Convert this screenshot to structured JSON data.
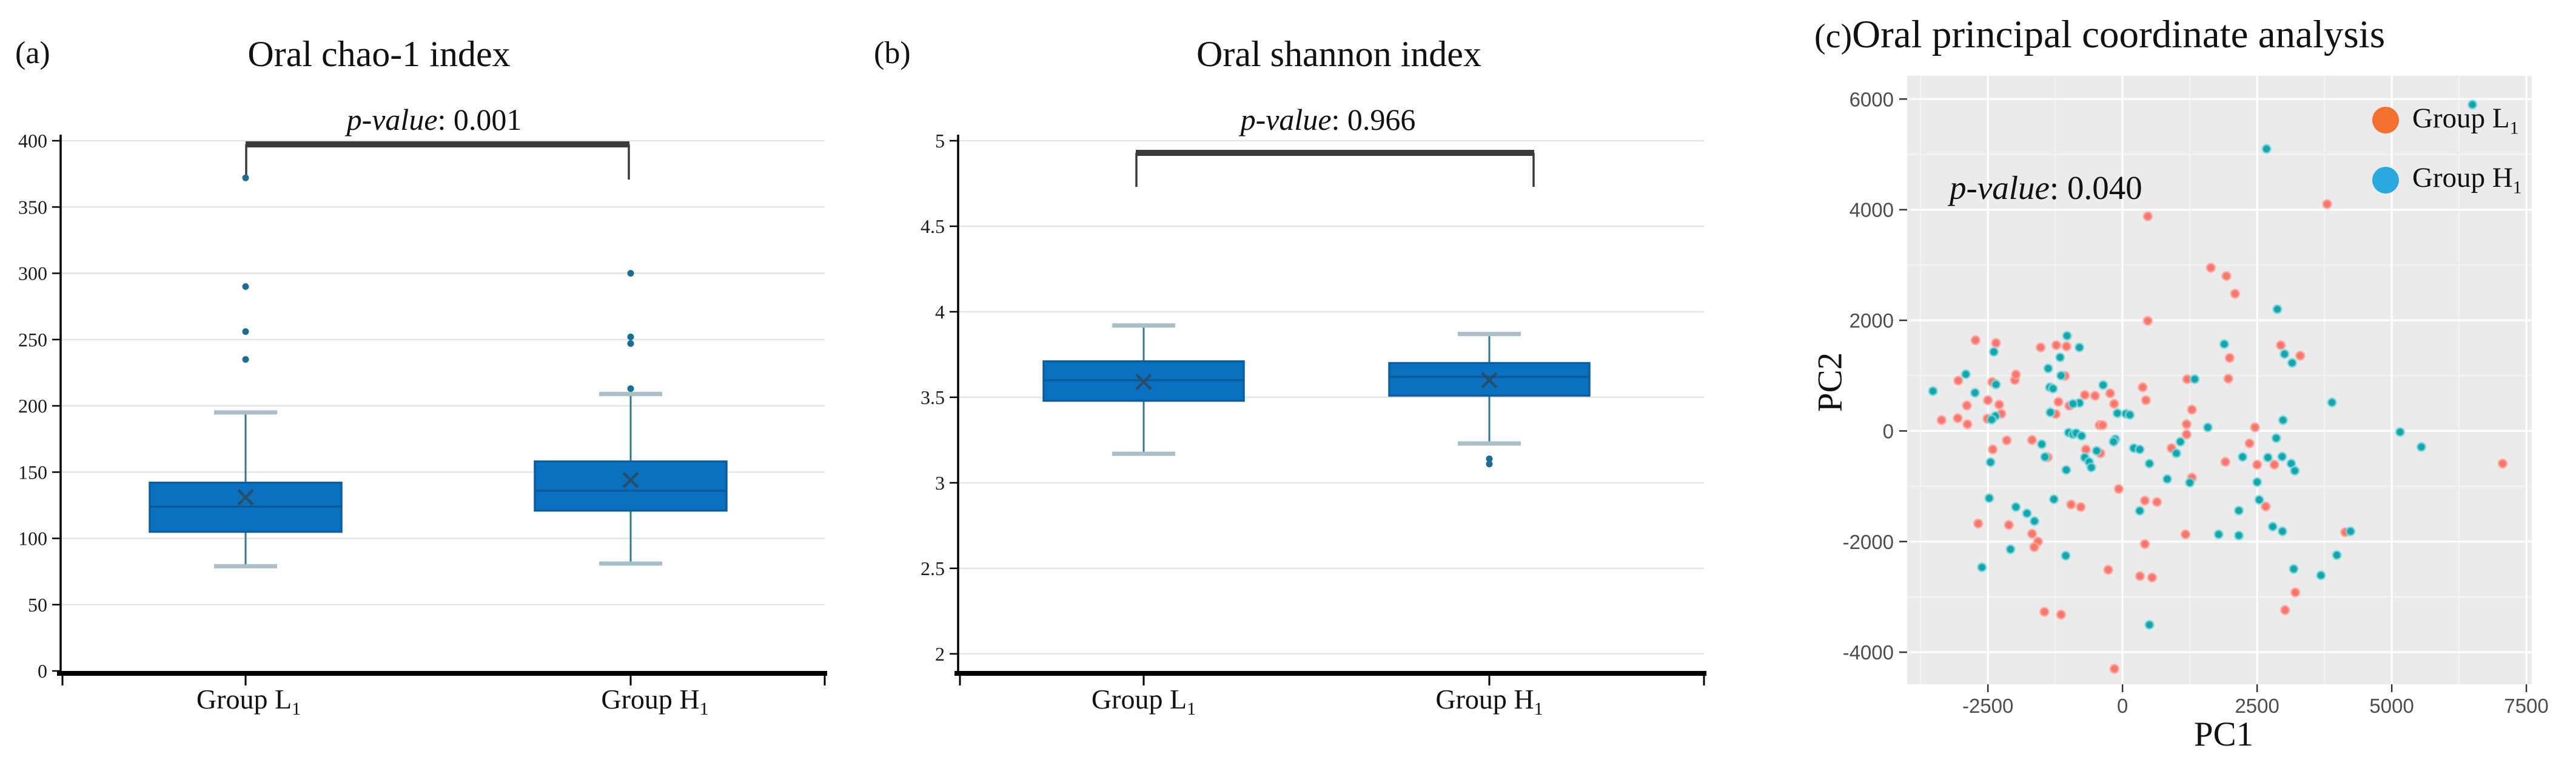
{
  "panels": {
    "a": {
      "letter": "(a)",
      "title": "Oral chao-1 index",
      "p_label": "p-value",
      "p_rest": ": 0.001"
    },
    "b": {
      "letter": "(b)",
      "title": "Oral shannon index",
      "p_label": "p-value",
      "p_rest": ": 0.966"
    },
    "c": {
      "letter": "(c)",
      "title": "Oral principal coordinate analysis",
      "p_label": "p-value",
      "p_rest": ": 0.040",
      "xlabel": "PC1",
      "ylabel": "PC2",
      "legend": [
        {
          "base": "Group L",
          "sub": "1",
          "color": "#f3702e"
        },
        {
          "base": "Group H",
          "sub": "1",
          "color": "#29a9e0"
        }
      ]
    }
  },
  "style": {
    "box_fill": "#0a71c1",
    "box_border": "#0b5fa0",
    "median": "#0a5a96",
    "mean": "#26506a",
    "whisker": "#35788c",
    "cap": "#a9bfca",
    "outlier": "#1b6d94",
    "grid_ab": "#e4e4e4",
    "axis": "#000000",
    "bracket": "#3a3a3a",
    "panel_bg": "#ebebeb",
    "grid_major": "#ffffff",
    "grid_minor": "#f4f4f4",
    "tick_stub": "#333333",
    "tick_text_c": "#4d4d4d",
    "point_l": "#f8766d",
    "point_l_halo": "#fcaba4",
    "point_h": "#12a5ab",
    "point_h_halo": "#8ce0e4"
  },
  "chart_data": [
    {
      "type": "box",
      "panel": "a",
      "title": "Oral chao-1 index",
      "p_value": 0.001,
      "categories": [
        {
          "base": "Group L",
          "sub": "1"
        },
        {
          "base": "Group H",
          "sub": "1"
        }
      ],
      "ylim": [
        0,
        400
      ],
      "yticks": [
        0,
        50,
        100,
        150,
        200,
        250,
        300,
        350,
        400
      ],
      "series": [
        {
          "name": "Group L1",
          "whisker_low": 79,
          "q1": 105,
          "median": 124,
          "mean": 131,
          "q3": 142,
          "whisker_high": 195,
          "outliers": [
            235,
            256,
            290,
            372
          ]
        },
        {
          "name": "Group H1",
          "whisker_low": 81,
          "q1": 121,
          "median": 136,
          "mean": 144,
          "q3": 158,
          "whisker_high": 209,
          "outliers": [
            213,
            247,
            252,
            300
          ]
        }
      ]
    },
    {
      "type": "box",
      "panel": "b",
      "title": "Oral shannon index",
      "p_value": 0.966,
      "categories": [
        {
          "base": "Group L",
          "sub": "1"
        },
        {
          "base": "Group H",
          "sub": "1"
        }
      ],
      "ylim": [
        1.9,
        5
      ],
      "yticks": [
        2,
        2.5,
        3,
        3.5,
        4,
        4.5,
        5
      ],
      "series": [
        {
          "name": "Group L1",
          "whisker_low": 3.17,
          "q1": 3.48,
          "median": 3.6,
          "mean": 3.59,
          "q3": 3.71,
          "whisker_high": 3.92,
          "outliers": []
        },
        {
          "name": "Group H1",
          "whisker_low": 3.23,
          "q1": 3.51,
          "median": 3.62,
          "mean": 3.6,
          "q3": 3.7,
          "whisker_high": 3.87,
          "outliers": [
            3.14,
            3.11
          ]
        }
      ]
    },
    {
      "type": "scatter",
      "panel": "c",
      "title": "Oral principal coordinate analysis",
      "p_value": 0.04,
      "xlabel": "PC1",
      "ylabel": "PC2",
      "xlim": [
        -4000,
        7600
      ],
      "ylim": [
        -4580,
        6420
      ],
      "xticks": [
        -2500,
        0,
        2500,
        5000,
        7500
      ],
      "xticks_minor": [
        -3750,
        -1250,
        1250,
        3750,
        6250
      ],
      "yticks": [
        -4000,
        -2000,
        0,
        2000,
        4000,
        6000
      ],
      "yticks_minor": [
        -3000,
        -1000,
        1000,
        3000,
        5000
      ],
      "series": [
        {
          "name": "Group L1",
          "points": [
            [
              3800,
              4100
            ],
            [
              470,
              3880
            ],
            [
              1640,
              2950
            ],
            [
              1930,
              2800
            ],
            [
              2090,
              2480
            ],
            [
              470,
              1990
            ],
            [
              -2730,
              1640
            ],
            [
              -2350,
              1590
            ],
            [
              -1520,
              1510
            ],
            [
              -1230,
              1550
            ],
            [
              -1040,
              1530
            ],
            [
              2940,
              1550
            ],
            [
              3300,
              1360
            ],
            [
              1990,
              1320
            ],
            [
              -2000,
              920
            ],
            [
              -1980,
              1020
            ],
            [
              -3050,
              910
            ],
            [
              -2420,
              885
            ],
            [
              -1070,
              995
            ],
            [
              1965,
              945
            ],
            [
              1200,
              935
            ],
            [
              375,
              790
            ],
            [
              -230,
              680
            ],
            [
              -700,
              650
            ],
            [
              -510,
              635
            ],
            [
              -2500,
              555
            ],
            [
              -2290,
              475
            ],
            [
              -1190,
              525
            ],
            [
              -990,
              455
            ],
            [
              -155,
              490
            ],
            [
              -2890,
              460
            ],
            [
              435,
              555
            ],
            [
              -1240,
              305
            ],
            [
              -2250,
              310
            ],
            [
              -3360,
              195
            ],
            [
              -3060,
              230
            ],
            [
              -2510,
              220
            ],
            [
              -425,
              105
            ],
            [
              -370,
              105
            ],
            [
              -2880,
              120
            ],
            [
              1290,
              385
            ],
            [
              1190,
              120
            ],
            [
              2460,
              65
            ],
            [
              -1680,
              -165
            ],
            [
              1190,
              -65
            ],
            [
              -2150,
              -170
            ],
            [
              -2410,
              -335
            ],
            [
              -680,
              -335
            ],
            [
              -410,
              -405
            ],
            [
              -1390,
              -475
            ],
            [
              2360,
              -225
            ],
            [
              910,
              -310
            ],
            [
              1910,
              -560
            ],
            [
              2500,
              -610
            ],
            [
              2820,
              -610
            ],
            [
              7060,
              -590
            ],
            [
              1290,
              -845
            ],
            [
              -70,
              -1050
            ],
            [
              415,
              -1260
            ],
            [
              640,
              -1285
            ],
            [
              -955,
              -1330
            ],
            [
              -775,
              -1375
            ],
            [
              2660,
              -1365
            ],
            [
              -1680,
              -1860
            ],
            [
              -1570,
              -2000
            ],
            [
              -1640,
              -2100
            ],
            [
              -2110,
              -1700
            ],
            [
              -2680,
              -1675
            ],
            [
              1170,
              -1870
            ],
            [
              4135,
              -1830
            ],
            [
              -265,
              -2510
            ],
            [
              325,
              -2625
            ],
            [
              550,
              -2650
            ],
            [
              415,
              -2045
            ],
            [
              -1450,
              -3270
            ],
            [
              -1140,
              -3320
            ],
            [
              3020,
              -3240
            ],
            [
              3210,
              -2920
            ],
            [
              -150,
              -4300
            ]
          ]
        },
        {
          "name": "Group H1",
          "points": [
            [
              6500,
              5900
            ],
            [
              2675,
              5100
            ],
            [
              2875,
              2200
            ],
            [
              -1030,
              1720
            ],
            [
              1890,
              1570
            ],
            [
              -2390,
              1430
            ],
            [
              3010,
              1390
            ],
            [
              -1160,
              1330
            ],
            [
              3150,
              1230
            ],
            [
              -1380,
              1130
            ],
            [
              -800,
              1510
            ],
            [
              -2910,
              1025
            ],
            [
              -1140,
              1000
            ],
            [
              1340,
              935
            ],
            [
              -2350,
              840
            ],
            [
              -360,
              830
            ],
            [
              -1350,
              790
            ],
            [
              -1290,
              765
            ],
            [
              -3520,
              720
            ],
            [
              -2740,
              690
            ],
            [
              3890,
              515
            ],
            [
              -800,
              505
            ],
            [
              -920,
              490
            ],
            [
              -1340,
              335
            ],
            [
              -95,
              320
            ],
            [
              65,
              310
            ],
            [
              135,
              290
            ],
            [
              -2360,
              270
            ],
            [
              -2430,
              205
            ],
            [
              2980,
              195
            ],
            [
              1585,
              65
            ],
            [
              -1000,
              -30
            ],
            [
              -920,
              -60
            ],
            [
              -860,
              -40
            ],
            [
              -760,
              -90
            ],
            [
              5155,
              -20
            ],
            [
              -135,
              -150
            ],
            [
              -165,
              -195
            ],
            [
              1075,
              -195
            ],
            [
              2855,
              -130
            ],
            [
              -1500,
              -240
            ],
            [
              210,
              -310
            ],
            [
              320,
              -335
            ],
            [
              -480,
              -360
            ],
            [
              1000,
              -405
            ],
            [
              -1440,
              -470
            ],
            [
              2230,
              -470
            ],
            [
              2700,
              -480
            ],
            [
              2965,
              -465
            ],
            [
              -2450,
              -565
            ],
            [
              500,
              -590
            ],
            [
              3135,
              -590
            ],
            [
              -700,
              -480
            ],
            [
              -620,
              -560
            ],
            [
              -580,
              -660
            ],
            [
              -1045,
              -705
            ],
            [
              3200,
              -720
            ],
            [
              5550,
              -290
            ],
            [
              830,
              -870
            ],
            [
              1250,
              -935
            ],
            [
              2500,
              -925
            ],
            [
              -2475,
              -1215
            ],
            [
              -1275,
              -1235
            ],
            [
              2540,
              -1245
            ],
            [
              -1980,
              -1375
            ],
            [
              320,
              -1445
            ],
            [
              2160,
              -1440
            ],
            [
              -1775,
              -1490
            ],
            [
              -1635,
              -1630
            ],
            [
              1785,
              -1870
            ],
            [
              2160,
              -1890
            ],
            [
              2790,
              -1730
            ],
            [
              2970,
              -1815
            ],
            [
              4235,
              -1815
            ],
            [
              -2080,
              -2140
            ],
            [
              -2610,
              -2465
            ],
            [
              -1055,
              -2255
            ],
            [
              3980,
              -2245
            ],
            [
              3180,
              -2495
            ],
            [
              3685,
              -2610
            ],
            [
              500,
              -3505
            ]
          ]
        }
      ]
    }
  ]
}
